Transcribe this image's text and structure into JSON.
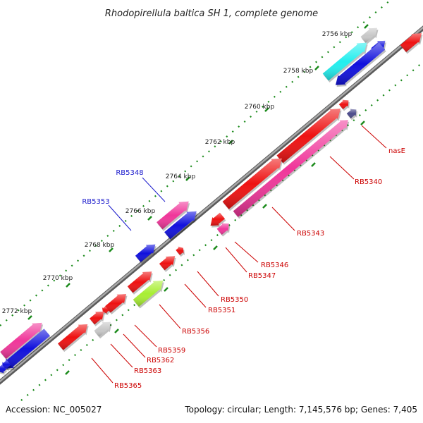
{
  "title": "Rhodopirellula baltica SH 1, complete genome",
  "footer": {
    "accession": "Accession: NC_005027",
    "summary": "Topology: circular; Length: 7,145,576 bp; Genes: 7,405"
  },
  "colors": {
    "backbone": "#7a7a7a",
    "ruler": "#1a8a1a",
    "forward_label": "#1a1acc",
    "reverse_label": "#cc0000",
    "red_gene": "#ee1111",
    "pink_gene": "#f0369a",
    "blue_gene": "#1010dd",
    "cyan_gene": "#22eeee",
    "gray_gene": "#c8c8c8",
    "lime_gene": "#a8ee33",
    "navy_gene": "#4a4a8a"
  },
  "ruler_ticks": [
    "2756 kbp",
    "2758 kbp",
    "2760 kbp",
    "2762 kbp",
    "2764 kbp",
    "2766 kbp",
    "2768 kbp",
    "2770 kbp",
    "2772 kbp"
  ],
  "forward_labels": [
    "RB5348",
    "RB5353"
  ],
  "reverse_labels": [
    "nasE",
    "RB5340",
    "RB5343",
    "RB5346",
    "RB5347",
    "RB5350",
    "RB5351",
    "RB5356",
    "RB5359",
    "RB5362",
    "RB5363",
    "RB5365"
  ]
}
